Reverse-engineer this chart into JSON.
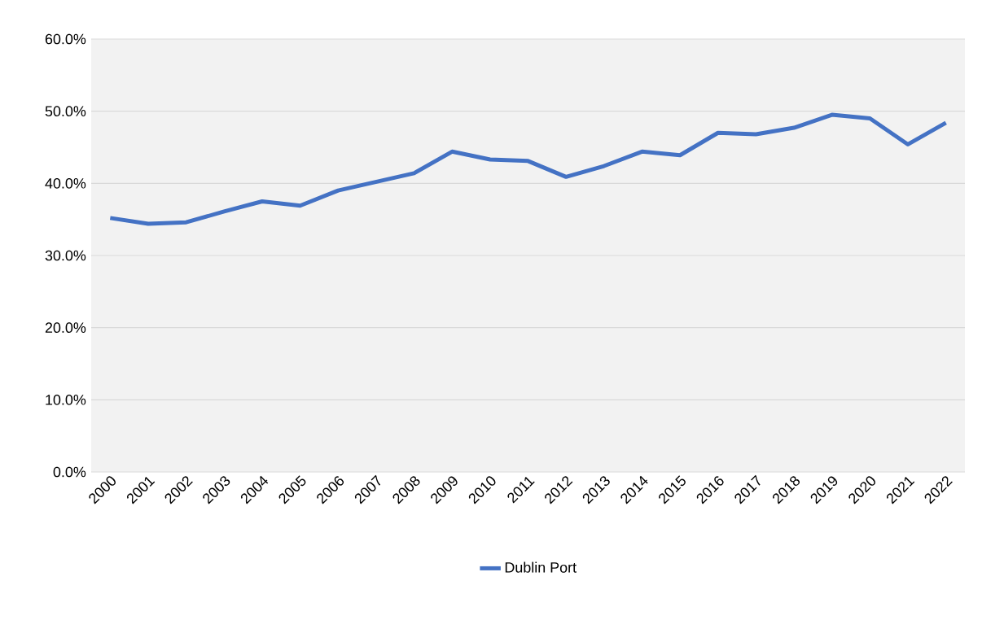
{
  "chart_data": {
    "type": "line",
    "categories": [
      "2000",
      "2001",
      "2002",
      "2003",
      "2004",
      "2005",
      "2006",
      "2007",
      "2008",
      "2009",
      "2010",
      "2011",
      "2012",
      "2013",
      "2014",
      "2015",
      "2016",
      "2017",
      "2018",
      "2019",
      "2020",
      "2021",
      "2022"
    ],
    "series": [
      {
        "name": "Dublin Port",
        "color": "#4472c4",
        "values": [
          35.2,
          34.4,
          34.6,
          36.1,
          37.5,
          36.9,
          39.0,
          40.2,
          41.4,
          44.4,
          43.3,
          43.1,
          40.9,
          42.4,
          44.4,
          43.9,
          47.0,
          46.8,
          47.7,
          49.5,
          49.0,
          45.4,
          48.4
        ]
      }
    ],
    "ylim": [
      0,
      60
    ],
    "yticks": [
      {
        "value": 0,
        "label": "0.0%"
      },
      {
        "value": 10,
        "label": "10.0%"
      },
      {
        "value": 20,
        "label": "20.0%"
      },
      {
        "value": 30,
        "label": "30.0%"
      },
      {
        "value": 40,
        "label": "40.0%"
      },
      {
        "value": 50,
        "label": "50.0%"
      },
      {
        "value": 60,
        "label": "60.0%"
      }
    ],
    "grid": "y",
    "legend": "bottom",
    "marker": "none",
    "line_style": "solid"
  }
}
